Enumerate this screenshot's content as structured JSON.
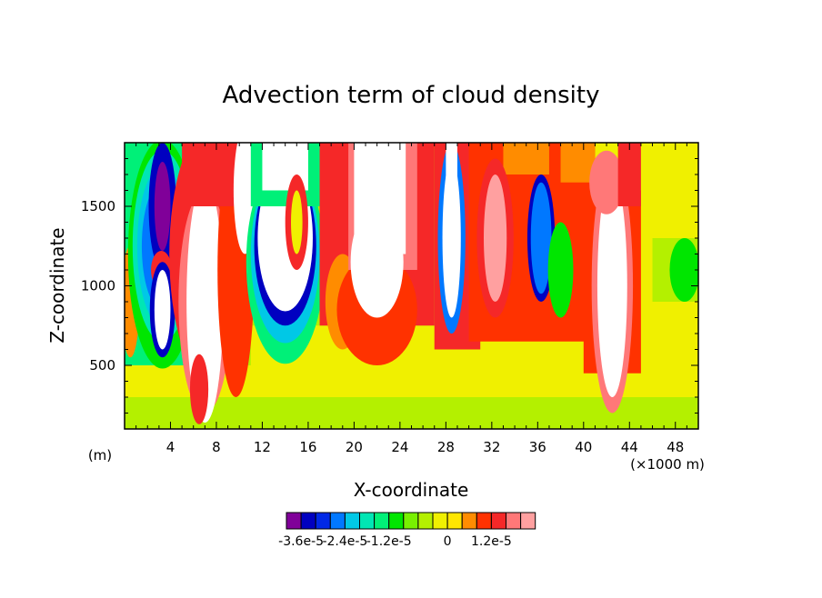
{
  "chart_data": {
    "type": "heatmap",
    "title": "Advection term of cloud density",
    "xlabel": "X-coordinate",
    "ylabel": "Z-coordinate",
    "x_unit_left": "(m)",
    "x_unit_right": "(×1000 m)",
    "xlim": [
      0,
      50
    ],
    "ylim": [
      100,
      1900
    ],
    "x_ticks": [
      4,
      8,
      12,
      16,
      20,
      24,
      28,
      32,
      36,
      40,
      44,
      48
    ],
    "y_ticks": [
      500,
      1000,
      1500
    ],
    "colorbar": {
      "colors": [
        "#800099",
        "#0000c0",
        "#0028e6",
        "#0078ff",
        "#00c8e6",
        "#00e6b4",
        "#00f078",
        "#00e600",
        "#78f000",
        "#b4f000",
        "#f0f000",
        "#ffe600",
        "#ff8c00",
        "#ff3200",
        "#f52828",
        "#ff7878",
        "#ffa0a0"
      ],
      "labels": [
        "-3.6e-5",
        "-2.4e-5",
        "-1.2e-5",
        "0",
        "1.2e-5"
      ]
    }
  }
}
